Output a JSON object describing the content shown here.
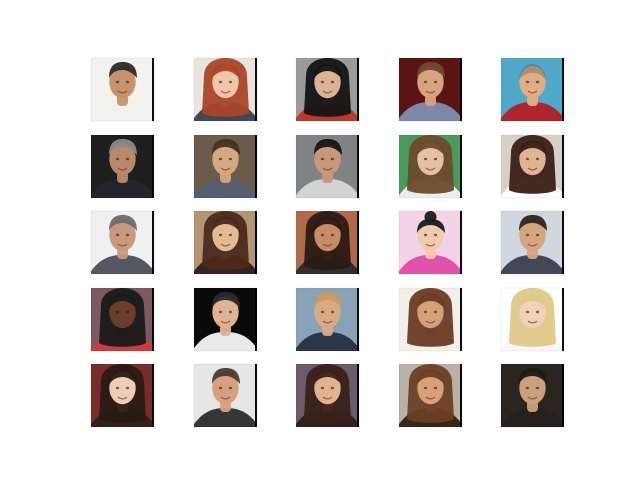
{
  "grid": {
    "rows": 5,
    "cols": 5
  },
  "images": [
    {
      "label": "face-1-1",
      "bg": "#f4f2ef",
      "skin": "#c7936a",
      "hair": "#2b2b2b",
      "shirt": "#f0f0f0",
      "hair_style": "short",
      "side_bar": true
    },
    {
      "label": "face-1-2",
      "bg": "#e9e4de",
      "skin": "#efc7a8",
      "hair": "#a9452a",
      "shirt": "#3a3f4a",
      "hair_style": "long",
      "side_bar": true
    },
    {
      "label": "face-1-3",
      "bg": "#9b9b9b",
      "skin": "#dcb294",
      "hair": "#141414",
      "shirt": "#b83524",
      "hair_style": "long",
      "side_bar": true
    },
    {
      "label": "face-1-4",
      "bg": "#5a1414",
      "skin": "#d9a27f",
      "hair": "#6b4a2e",
      "shirt": "#7c8fb0",
      "hair_style": "short",
      "side_bar": true
    },
    {
      "label": "face-1-5",
      "bg": "#4fa8c8",
      "skin": "#e0ad86",
      "hair": "#2a2a2a",
      "shirt": "#b11f24",
      "hair_style": "bald",
      "side_bar": true
    },
    {
      "label": "face-2-1",
      "bg": "#1e1e1e",
      "skin": "#b98a69",
      "hair": "#8a8a8a",
      "shirt": "#23262d",
      "hair_style": "short",
      "side_bar": true
    },
    {
      "label": "face-2-2",
      "bg": "#6a5b4b",
      "skin": "#d6a882",
      "hair": "#4a2f1c",
      "shirt": "#556070",
      "hair_style": "short",
      "side_bar": true
    },
    {
      "label": "face-2-3",
      "bg": "#7f8386",
      "skin": "#c9977a",
      "hair": "#151515",
      "shirt": "#d7d7d7",
      "hair_style": "short",
      "side_bar": true
    },
    {
      "label": "face-2-4",
      "bg": "#4b9a5d",
      "skin": "#e7c0a1",
      "hair": "#6b4a2b",
      "shirt": "#f3f3f3",
      "hair_style": "long",
      "side_bar": true
    },
    {
      "label": "face-2-5",
      "bg": "#d7d0ca",
      "skin": "#e0b493",
      "hair": "#3a1f16",
      "shirt": "#ffffff",
      "hair_style": "long",
      "side_bar": true
    },
    {
      "label": "face-3-1",
      "bg": "#f0f0f0",
      "skin": "#c79a7f",
      "hair": "#6a6a6a",
      "shirt": "#4a4f5a",
      "hair_style": "short",
      "side_bar": true
    },
    {
      "label": "face-3-2",
      "bg": "#b39574",
      "skin": "#e6b996",
      "hair": "#4b2a1b",
      "shirt": "#2c1f18",
      "hair_style": "long",
      "side_bar": true
    },
    {
      "label": "face-3-3",
      "bg": "#b06a4a",
      "skin": "#c98a66",
      "hair": "#2a1a14",
      "shirt": "#2b2b2b",
      "hair_style": "long",
      "side_bar": true
    },
    {
      "label": "face-3-4",
      "bg": "#f3d3e8",
      "skin": "#f0cbb0",
      "hair": "#1b1b1b",
      "shirt": "#e04aa6",
      "hair_style": "bun",
      "side_bar": true
    },
    {
      "label": "face-3-5",
      "bg": "#cfd8df",
      "skin": "#d6a57e",
      "hair": "#2d2520",
      "shirt": "#394150",
      "hair_style": "short",
      "side_bar": true
    },
    {
      "label": "face-4-1",
      "bg": "#7b5a62",
      "skin": "#6a3e2a",
      "hair": "#1a1a1a",
      "shirt": "#d23a3a",
      "hair_style": "long",
      "side_bar": true
    },
    {
      "label": "face-4-2",
      "bg": "#0a0a0a",
      "skin": "#dfb293",
      "hair": "#2a2a2a",
      "shirt": "#f6f6f6",
      "hair_style": "short",
      "side_bar": true
    },
    {
      "label": "face-4-3",
      "bg": "#88a3b8",
      "skin": "#d9aa86",
      "hair": "#c69d62",
      "shirt": "#263041",
      "hair_style": "short",
      "side_bar": true
    },
    {
      "label": "face-4-4",
      "bg": "#f3eee9",
      "skin": "#d69f7a",
      "hair": "#6b3b24",
      "shirt": "#f3eee9",
      "hair_style": "long",
      "side_bar": true
    },
    {
      "label": "face-4-5",
      "bg": "#ffffff",
      "skin": "#f0d2b8",
      "hair": "#e0c889",
      "shirt": "#f7f7f7",
      "hair_style": "long",
      "side_bar": true
    },
    {
      "label": "face-5-1",
      "bg": "#7a2b2b",
      "skin": "#f0ccb6",
      "hair": "#2a1a14",
      "shirt": "#2d2020",
      "hair_style": "long",
      "side_bar": true
    },
    {
      "label": "face-5-2",
      "bg": "#e6e6e6",
      "skin": "#d6a07e",
      "hair": "#4a3a2f",
      "shirt": "#2b2b2b",
      "hair_style": "short",
      "side_bar": true
    },
    {
      "label": "face-5-3",
      "bg": "#6a5a6a",
      "skin": "#e0b391",
      "hair": "#3a2119",
      "shirt": "#2b1f1f",
      "hair_style": "long",
      "side_bar": true
    },
    {
      "label": "face-5-4",
      "bg": "#b9b1a6",
      "skin": "#d9a07a",
      "hair": "#6a3f25",
      "shirt": "#2e1f16",
      "hair_style": "long",
      "side_bar": true
    },
    {
      "label": "face-5-5",
      "bg": "#2a2521",
      "skin": "#caa17a",
      "hair": "#1e1a16",
      "shirt": "#24201d",
      "hair_style": "short",
      "side_bar": true
    }
  ]
}
